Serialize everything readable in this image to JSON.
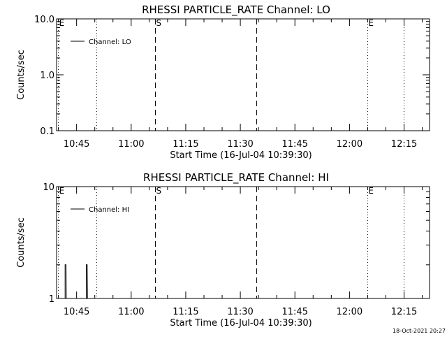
{
  "footer": {
    "timestamp": "18-Oct-2021 20:27"
  },
  "chart_data": [
    {
      "type": "line",
      "title": "RHESSI PARTICLE_RATE Channel: LO",
      "xlabel": "Start Time (16-Jul-04 10:39:30)",
      "ylabel": "Counts/sec",
      "yscale": "log",
      "ylim": [
        0.1,
        10.0
      ],
      "yticks": [
        "0.1",
        "1.0",
        "10.0"
      ],
      "yticks_values": [
        0.1,
        1.0,
        10.0
      ],
      "xlim": [
        "10:39:30",
        "12:22:00"
      ],
      "xticks": [
        "10:45",
        "11:00",
        "11:15",
        "11:30",
        "11:45",
        "12:00",
        "12:15"
      ],
      "legend": "top-left",
      "grid": false,
      "series": [
        {
          "name": "Channel: LO",
          "color": "#000000",
          "points": []
        }
      ],
      "markers": [
        {
          "time": "10:40:00",
          "style": "dotted",
          "label": "E"
        },
        {
          "time": "10:50:30",
          "style": "dotted",
          "label": ""
        },
        {
          "time": "11:06:40",
          "style": "dashed",
          "label": "S"
        },
        {
          "time": "11:34:30",
          "style": "dashed",
          "label": ""
        },
        {
          "time": "12:05:00",
          "style": "dotted",
          "label": "E"
        },
        {
          "time": "12:15:00",
          "style": "dotted",
          "label": ""
        }
      ]
    },
    {
      "type": "line",
      "title": "RHESSI PARTICLE_RATE Channel: HI",
      "xlabel": "Start Time (16-Jul-04 10:39:30)",
      "ylabel": "Counts/sec",
      "yscale": "log",
      "ylim": [
        1,
        10
      ],
      "yticks": [
        "1",
        "10"
      ],
      "yticks_values": [
        1,
        10
      ],
      "xlim": [
        "10:39:30",
        "12:22:00"
      ],
      "xticks": [
        "10:45",
        "11:00",
        "11:15",
        "11:30",
        "11:45",
        "12:00",
        "12:15"
      ],
      "legend": "top-left",
      "grid": false,
      "series": [
        {
          "name": "Channel: HI",
          "color": "#000000",
          "points": [
            [
              "10:41:50",
              1
            ],
            [
              "10:41:50",
              2
            ],
            [
              "10:42:05",
              2
            ],
            [
              "10:42:10",
              1
            ],
            [
              "10:47:40",
              1
            ],
            [
              "10:47:40",
              2
            ],
            [
              "10:47:55",
              2
            ],
            [
              "10:48:00",
              1
            ]
          ]
        }
      ],
      "markers": [
        {
          "time": "10:40:00",
          "style": "dotted",
          "label": "E"
        },
        {
          "time": "10:50:30",
          "style": "dotted",
          "label": ""
        },
        {
          "time": "11:06:40",
          "style": "dashed",
          "label": "S"
        },
        {
          "time": "11:34:30",
          "style": "dashed",
          "label": ""
        },
        {
          "time": "12:05:00",
          "style": "dotted",
          "label": "E"
        },
        {
          "time": "12:15:00",
          "style": "dotted",
          "label": ""
        }
      ]
    }
  ]
}
